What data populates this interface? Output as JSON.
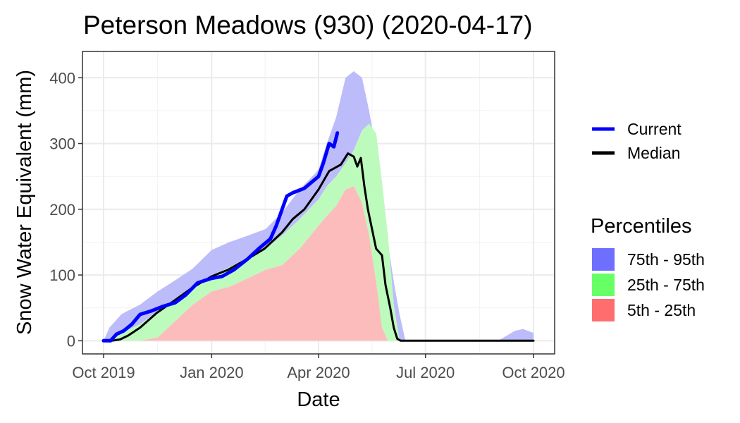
{
  "chart_data": {
    "type": "area",
    "title": "Peterson Meadows (930) (2020-04-17)",
    "xlabel": "Date",
    "ylabel": "Snow Water Equivalent (mm)",
    "x_range": [
      "2019-10-01",
      "2020-10-01"
    ],
    "ylim": [
      -20,
      440
    ],
    "x_ticks": [
      {
        "date": "2019-10-01",
        "label": "Oct 2019"
      },
      {
        "date": "2020-01-01",
        "label": "Jan 2020"
      },
      {
        "date": "2020-04-01",
        "label": "Apr 2020"
      },
      {
        "date": "2020-07-01",
        "label": "Jul 2020"
      },
      {
        "date": "2020-10-01",
        "label": "Oct 2020"
      }
    ],
    "y_ticks": [
      0,
      100,
      200,
      300,
      400
    ],
    "grid": true,
    "legend_position": "right",
    "lines_legend": [
      {
        "label": "Current",
        "color": "#0000ff"
      },
      {
        "label": "Median",
        "color": "#000000"
      }
    ],
    "bands_legend_title": "Percentiles",
    "bands_legend": [
      {
        "label": "75th - 95th",
        "color": "#6e6eff"
      },
      {
        "label": "25th - 75th",
        "color": "#66ff66"
      },
      {
        "label": "5th - 25th",
        "color": "#ff6e6e"
      }
    ],
    "band_colors": {
      "p75_95": "#bcbcfb",
      "p25_75": "#bdfbbd",
      "p5_25": "#fcbcbc"
    },
    "percentiles": {
      "x": [
        "2019-10-01",
        "2019-10-06",
        "2019-10-11",
        "2019-10-16",
        "2019-10-21",
        "2019-11-01",
        "2019-11-16",
        "2019-12-01",
        "2019-12-16",
        "2020-01-01",
        "2020-01-16",
        "2020-02-01",
        "2020-02-16",
        "2020-03-01",
        "2020-03-16",
        "2020-04-01",
        "2020-04-08",
        "2020-04-16",
        "2020-04-24",
        "2020-05-01",
        "2020-05-08",
        "2020-05-14",
        "2020-05-20",
        "2020-05-25",
        "2020-05-30",
        "2020-06-04",
        "2020-06-09",
        "2020-06-14",
        "2020-06-19",
        "2020-06-25",
        "2020-07-01",
        "2020-08-01",
        "2020-09-01",
        "2020-09-15",
        "2020-09-22",
        "2020-10-01"
      ],
      "p5": [
        0,
        0,
        0,
        0,
        0,
        0,
        0,
        0,
        0,
        0,
        0,
        0,
        0,
        0,
        0,
        0,
        0,
        0,
        0,
        0,
        0,
        0,
        0,
        0,
        0,
        0,
        0,
        0,
        0,
        0,
        0,
        0,
        0,
        0,
        0,
        0
      ],
      "p25": [
        0,
        0,
        0,
        0,
        0,
        0,
        5,
        30,
        55,
        75,
        82,
        95,
        108,
        115,
        140,
        175,
        190,
        205,
        230,
        235,
        210,
        160,
        90,
        20,
        0,
        0,
        0,
        0,
        0,
        0,
        0,
        0,
        0,
        0,
        0,
        0
      ],
      "p75": [
        0,
        0,
        5,
        10,
        16,
        25,
        45,
        62,
        82,
        98,
        112,
        125,
        140,
        160,
        185,
        215,
        235,
        250,
        270,
        290,
        320,
        330,
        315,
        240,
        160,
        55,
        0,
        0,
        0,
        0,
        0,
        0,
        0,
        0,
        0,
        0
      ],
      "p95": [
        0,
        20,
        30,
        40,
        45,
        55,
        75,
        92,
        110,
        138,
        150,
        160,
        170,
        195,
        230,
        260,
        300,
        340,
        400,
        410,
        400,
        350,
        290,
        230,
        150,
        90,
        40,
        0,
        0,
        0,
        0,
        0,
        0,
        15,
        18,
        12
      ]
    },
    "series": [
      {
        "name": "Median",
        "x": [
          "2019-10-01",
          "2019-10-08",
          "2019-10-15",
          "2019-10-22",
          "2019-11-01",
          "2019-11-15",
          "2019-12-01",
          "2019-12-15",
          "2020-01-01",
          "2020-01-15",
          "2020-02-01",
          "2020-02-15",
          "2020-03-01",
          "2020-03-10",
          "2020-03-20",
          "2020-04-01",
          "2020-04-10",
          "2020-04-20",
          "2020-04-26",
          "2020-05-01",
          "2020-05-04",
          "2020-05-07",
          "2020-05-10",
          "2020-05-13",
          "2020-05-20",
          "2020-05-25",
          "2020-05-28",
          "2020-06-01",
          "2020-06-04",
          "2020-06-07",
          "2020-06-10",
          "2020-06-13",
          "2020-06-15",
          "2020-07-01",
          "2020-08-01",
          "2020-09-01",
          "2020-10-01"
        ],
        "y": [
          0,
          0,
          2,
          8,
          20,
          42,
          62,
          80,
          98,
          108,
          125,
          140,
          165,
          185,
          200,
          230,
          258,
          268,
          285,
          280,
          265,
          278,
          235,
          200,
          140,
          130,
          85,
          50,
          20,
          3,
          0,
          0,
          0,
          0,
          0,
          0,
          0
        ]
      },
      {
        "name": "Current",
        "x": [
          "2019-10-01",
          "2019-10-07",
          "2019-10-12",
          "2019-10-18",
          "2019-10-25",
          "2019-11-01",
          "2019-11-10",
          "2019-11-20",
          "2019-12-01",
          "2019-12-10",
          "2019-12-20",
          "2020-01-01",
          "2020-01-10",
          "2020-01-20",
          "2020-02-01",
          "2020-02-10",
          "2020-02-20",
          "2020-02-25",
          "2020-03-01",
          "2020-03-05",
          "2020-03-10",
          "2020-03-20",
          "2020-04-01",
          "2020-04-05",
          "2020-04-10",
          "2020-04-14",
          "2020-04-17"
        ],
        "y": [
          0,
          0,
          10,
          15,
          25,
          40,
          45,
          52,
          58,
          70,
          88,
          95,
          98,
          108,
          125,
          140,
          155,
          175,
          200,
          220,
          225,
          232,
          250,
          270,
          300,
          295,
          316
        ]
      }
    ]
  }
}
